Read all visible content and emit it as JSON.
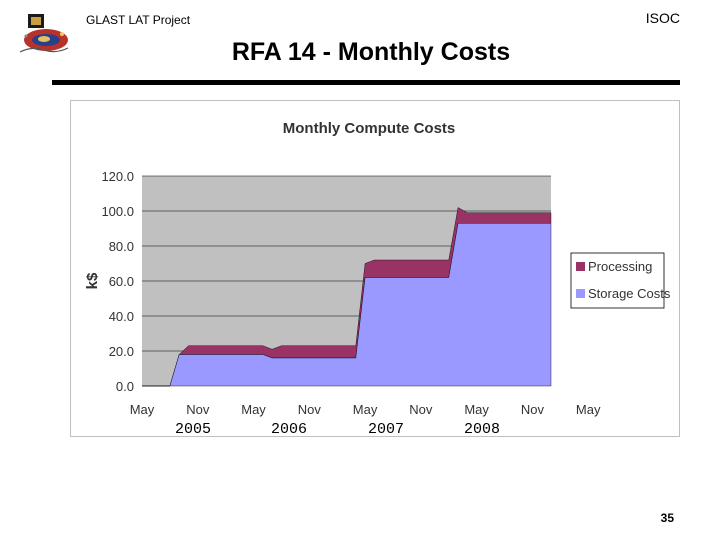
{
  "header": {
    "project": "GLAST LAT Project",
    "org": "ISOC",
    "title": "RFA 14 - Monthly Costs"
  },
  "footer": {
    "page_number": "35"
  },
  "colors": {
    "plot_bg": "#c0c0c0",
    "processing": "#993366",
    "storage": "#9999ff",
    "gridline": "#000000"
  },
  "year_labels": [
    "2005",
    "2006",
    "2007",
    "2008"
  ],
  "chart_data": {
    "type": "area",
    "stacked": true,
    "title": "Monthly Compute Costs",
    "xlabel": "",
    "ylabel": "k$",
    "ylim": [
      0,
      120
    ],
    "yticks": [
      "120.0",
      "100.0",
      "80.0",
      "60.0",
      "40.0",
      "20.0",
      "0.0"
    ],
    "ytick_values": [
      120,
      100,
      80,
      60,
      40,
      20,
      0
    ],
    "xtick_labels": [
      "May",
      "Nov",
      "May",
      "Nov",
      "May",
      "Nov",
      "May",
      "Nov",
      "May"
    ],
    "month_span": 44,
    "x": [
      0,
      3,
      4,
      5,
      13,
      14,
      15,
      23,
      24,
      25,
      33,
      34,
      35,
      43,
      44
    ],
    "series": [
      {
        "name": "Storage Costs",
        "values": [
          0,
          0,
          18,
          18,
          18,
          16,
          16,
          16,
          62,
          62,
          62,
          93,
          93,
          93,
          93
        ]
      },
      {
        "name": "Processing",
        "values": [
          0,
          0,
          0,
          5,
          5,
          5,
          7,
          7,
          8,
          10,
          10,
          9,
          6,
          6,
          6
        ]
      }
    ],
    "legend": {
      "position": "right",
      "order": [
        "Processing",
        "Storage Costs"
      ]
    }
  }
}
